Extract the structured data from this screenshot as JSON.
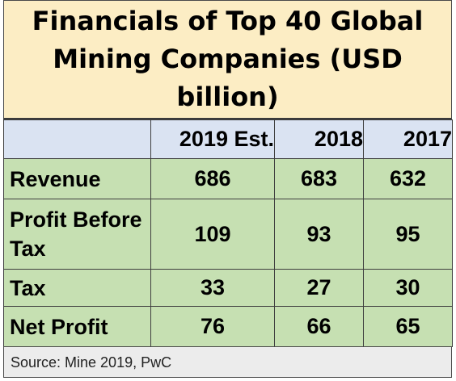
{
  "chart_data": {
    "type": "table",
    "title": "Financials of Top 40 Global Mining Companies (USD billion)",
    "columns": [
      "",
      "2019 Est.",
      "2018",
      "2017"
    ],
    "rows": [
      {
        "label": "Revenue",
        "values": [
          686,
          683,
          632
        ]
      },
      {
        "label": "Profit Before Tax",
        "values": [
          109,
          93,
          95
        ]
      },
      {
        "label": "Tax",
        "values": [
          33,
          27,
          30
        ]
      },
      {
        "label": "Net Profit",
        "values": [
          76,
          66,
          65
        ]
      }
    ],
    "source": "Source: Mine 2019, PwC"
  },
  "colors": {
    "title_bg": "#fcedc4",
    "header_bg": "#dae3f2",
    "body_bg": "#c6e0b2",
    "source_bg": "#ececec"
  }
}
